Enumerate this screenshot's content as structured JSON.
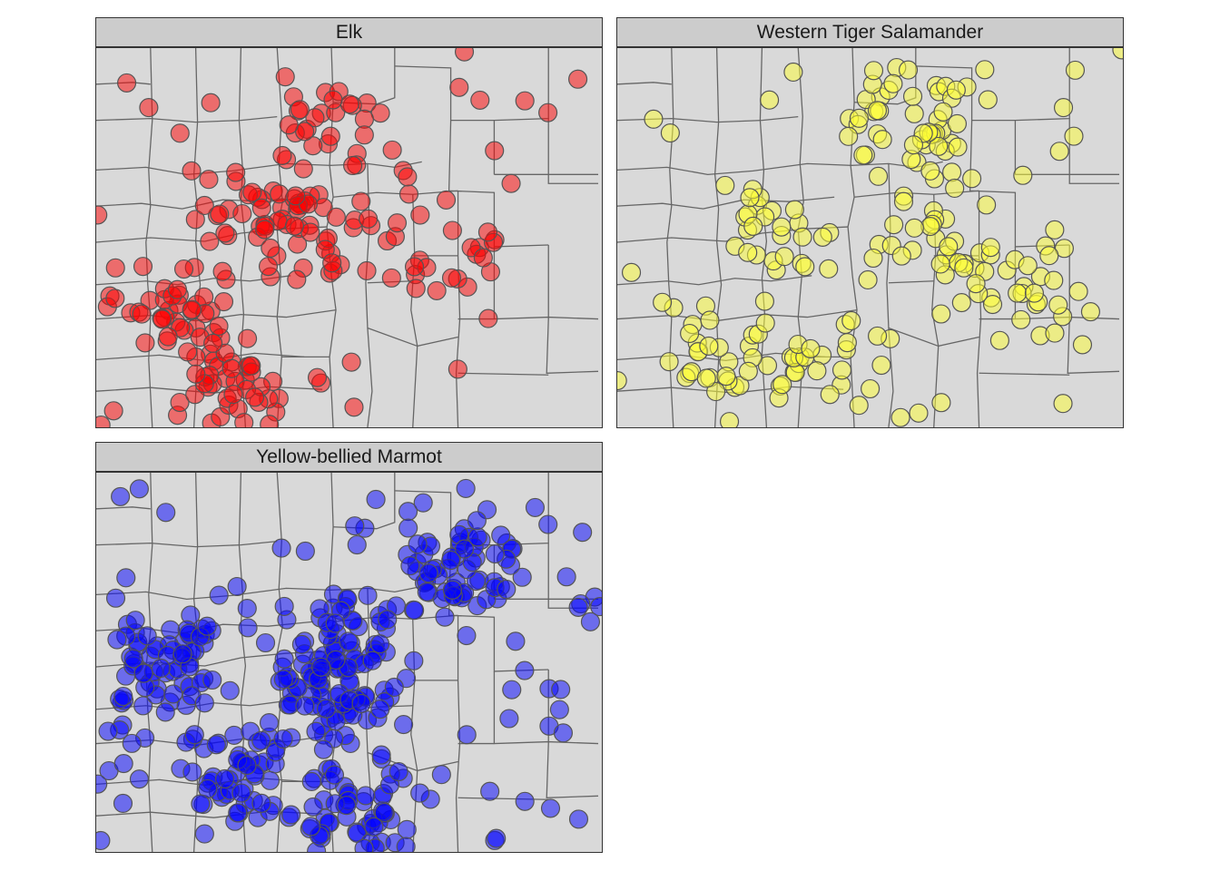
{
  "colors": {
    "land": "#d9d9d9",
    "border": "#666666",
    "strip_bg": "#cccccc",
    "elk": "#ff0000",
    "salamander": "#ffff33",
    "marmot": "#0000ff"
  },
  "panels": [
    {
      "title": "Elk",
      "color_key": "elk",
      "seed": 11,
      "density": 230
    },
    {
      "title": "Western Tiger Salamander",
      "color_key": "salamander",
      "seed": 23,
      "density": 215
    },
    {
      "title": "Yellow-bellied Marmot",
      "color_key": "marmot",
      "seed": 37,
      "density": 420
    }
  ]
}
